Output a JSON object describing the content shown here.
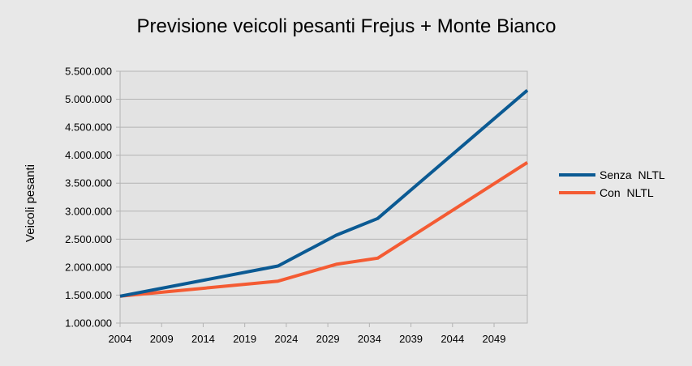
{
  "chart_data": {
    "type": "line",
    "title": "Previsione veicoli pesanti Frejus + Monte Bianco",
    "xlabel": "",
    "ylabel": "Veicoli   pesanti",
    "x_ticks": [
      "2004",
      "2009",
      "2014",
      "2019",
      "2024",
      "2029",
      "2034",
      "2039",
      "2044",
      "2049"
    ],
    "y_ticks": [
      "1.000.000",
      "1.500.000",
      "2.000.000",
      "2.500.000",
      "3.000.000",
      "3.500.000",
      "4.000.000",
      "4.500.000",
      "5.000.000",
      "5.500.000"
    ],
    "xlim": [
      2004,
      2053
    ],
    "ylim": [
      1000000,
      5500000
    ],
    "grid": "horizontal",
    "legend_position": "right",
    "series": [
      {
        "name": "Senza  NLTL",
        "color": "#0b5a93",
        "points": [
          [
            2004,
            1480000
          ],
          [
            2023,
            2020000
          ],
          [
            2030,
            2570000
          ],
          [
            2035,
            2870000
          ],
          [
            2053,
            5160000
          ]
        ]
      },
      {
        "name": "Con  NLTL",
        "color": "#f45b33",
        "points": [
          [
            2004,
            1480000
          ],
          [
            2023,
            1750000
          ],
          [
            2030,
            2050000
          ],
          [
            2035,
            2160000
          ],
          [
            2053,
            3870000
          ]
        ]
      }
    ]
  }
}
